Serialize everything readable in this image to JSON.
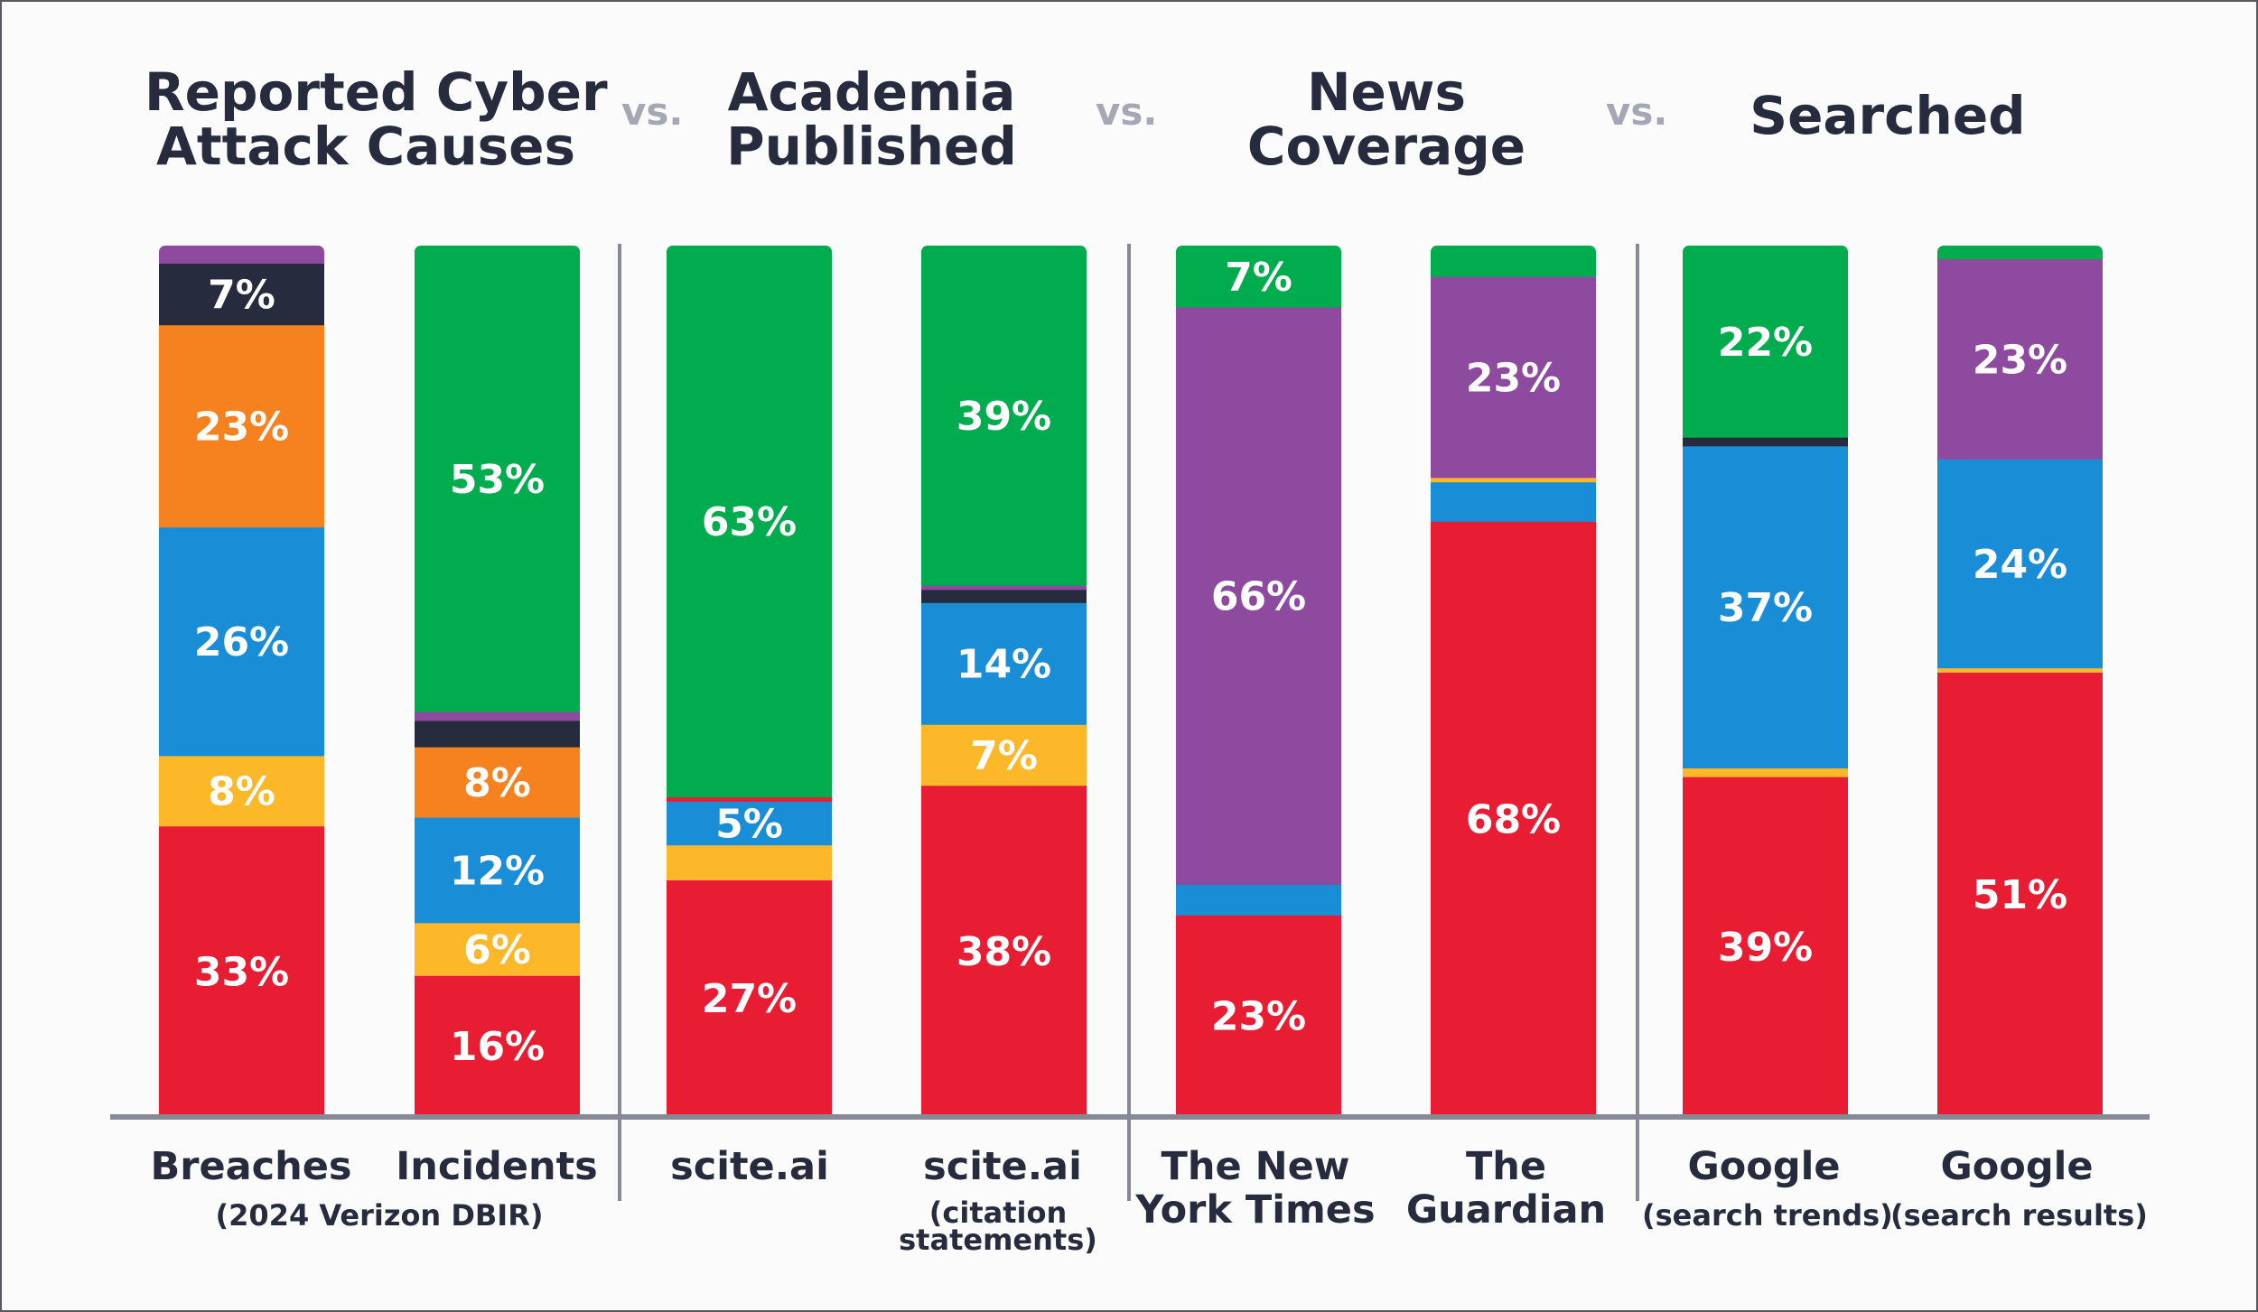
{
  "header": {
    "groups": [
      {
        "title_line1": "Reported Cyber",
        "title_line2": "Attack Causes"
      },
      {
        "title_line1": "Academia",
        "title_line2": "Published"
      },
      {
        "title_line1": "News",
        "title_line2": "Coverage"
      },
      {
        "title_line1": "",
        "title_line2": "Searched"
      }
    ],
    "vs_label": "vs."
  },
  "chart_data": {
    "type": "bar",
    "stacked": true,
    "orientation": "vertical",
    "grid": false,
    "legend": "none",
    "ylim": [
      0,
      100
    ],
    "colors": {
      "red": "#e81c32",
      "yellow": "#fdb82a",
      "blue": "#1a8dd7",
      "orange": "#f5821f",
      "dark": "#262b3d",
      "purple": "#8e4a9e",
      "green": "#00ac4d",
      "axis": "#878a96"
    },
    "bars": [
      {
        "label_line1": "Breaches",
        "label_line2": "",
        "segments": [
          {
            "color": "red",
            "value": 33,
            "label": "33%"
          },
          {
            "color": "yellow",
            "value": 8,
            "label": "8%"
          },
          {
            "color": "blue",
            "value": 26,
            "label": "26%"
          },
          {
            "color": "orange",
            "value": 23,
            "label": "23%"
          },
          {
            "color": "dark",
            "value": 7,
            "label": "7%"
          },
          {
            "color": "purple",
            "value": 2,
            "label": ""
          }
        ]
      },
      {
        "label_line1": "Incidents",
        "label_line2": "",
        "segments": [
          {
            "color": "red",
            "value": 16,
            "label": "16%"
          },
          {
            "color": "yellow",
            "value": 6,
            "label": "6%"
          },
          {
            "color": "blue",
            "value": 12,
            "label": "12%"
          },
          {
            "color": "orange",
            "value": 8,
            "label": "8%"
          },
          {
            "color": "dark",
            "value": 3,
            "label": ""
          },
          {
            "color": "purple",
            "value": 1,
            "label": ""
          },
          {
            "color": "green",
            "value": 53,
            "label": "53%"
          }
        ]
      },
      {
        "label_line1": "scite.ai",
        "label_line2": "",
        "segments": [
          {
            "color": "red",
            "value": 27,
            "label": "27%"
          },
          {
            "color": "yellow",
            "value": 4,
            "label": ""
          },
          {
            "color": "blue",
            "value": 5,
            "label": "5%"
          },
          {
            "color": "red",
            "value": 0.5,
            "label": ""
          },
          {
            "color": "green",
            "value": 63,
            "label": "63%"
          }
        ]
      },
      {
        "label_line1": "scite.ai",
        "label_line2": "(citation statements)",
        "segments": [
          {
            "color": "red",
            "value": 38,
            "label": "38%"
          },
          {
            "color": "yellow",
            "value": 7,
            "label": "7%"
          },
          {
            "color": "blue",
            "value": 14,
            "label": "14%"
          },
          {
            "color": "dark",
            "value": 1.5,
            "label": ""
          },
          {
            "color": "purple",
            "value": 0.5,
            "label": ""
          },
          {
            "color": "green",
            "value": 39,
            "label": "39%"
          }
        ]
      },
      {
        "label_line1": "The New",
        "label_line2": "York Times",
        "segments": [
          {
            "color": "red",
            "value": 23,
            "label": "23%"
          },
          {
            "color": "blue",
            "value": 3.5,
            "label": ""
          },
          {
            "color": "purple",
            "value": 66,
            "label": "66%"
          },
          {
            "color": "green",
            "value": 7,
            "label": "7%"
          }
        ]
      },
      {
        "label_line1": "The",
        "label_line2": "Guardian",
        "segments": [
          {
            "color": "red",
            "value": 68,
            "label": "68%"
          },
          {
            "color": "blue",
            "value": 4.5,
            "label": ""
          },
          {
            "color": "yellow",
            "value": 0.5,
            "label": ""
          },
          {
            "color": "purple",
            "value": 23,
            "label": "23%"
          },
          {
            "color": "green",
            "value": 3.5,
            "label": ""
          }
        ]
      },
      {
        "label_line1": "Google",
        "label_line2": "(search trends)",
        "segments": [
          {
            "color": "red",
            "value": 39,
            "label": "39%"
          },
          {
            "color": "yellow",
            "value": 1,
            "label": ""
          },
          {
            "color": "blue",
            "value": 37,
            "label": "37%"
          },
          {
            "color": "dark",
            "value": 1,
            "label": ""
          },
          {
            "color": "green",
            "value": 22,
            "label": "22%"
          }
        ]
      },
      {
        "label_line1": "Google",
        "label_line2": "(search results)",
        "segments": [
          {
            "color": "red",
            "value": 51,
            "label": "51%"
          },
          {
            "color": "yellow",
            "value": 0.5,
            "label": ""
          },
          {
            "color": "blue",
            "value": 24,
            "label": "24%"
          },
          {
            "color": "purple",
            "value": 23,
            "label": "23%"
          },
          {
            "color": "green",
            "value": 1.5,
            "label": ""
          }
        ]
      }
    ],
    "footnotes": [
      {
        "text": "(2024 Verizon DBIR)"
      },
      {
        "text": "(citation"
      },
      {
        "text": "statements)"
      }
    ]
  }
}
